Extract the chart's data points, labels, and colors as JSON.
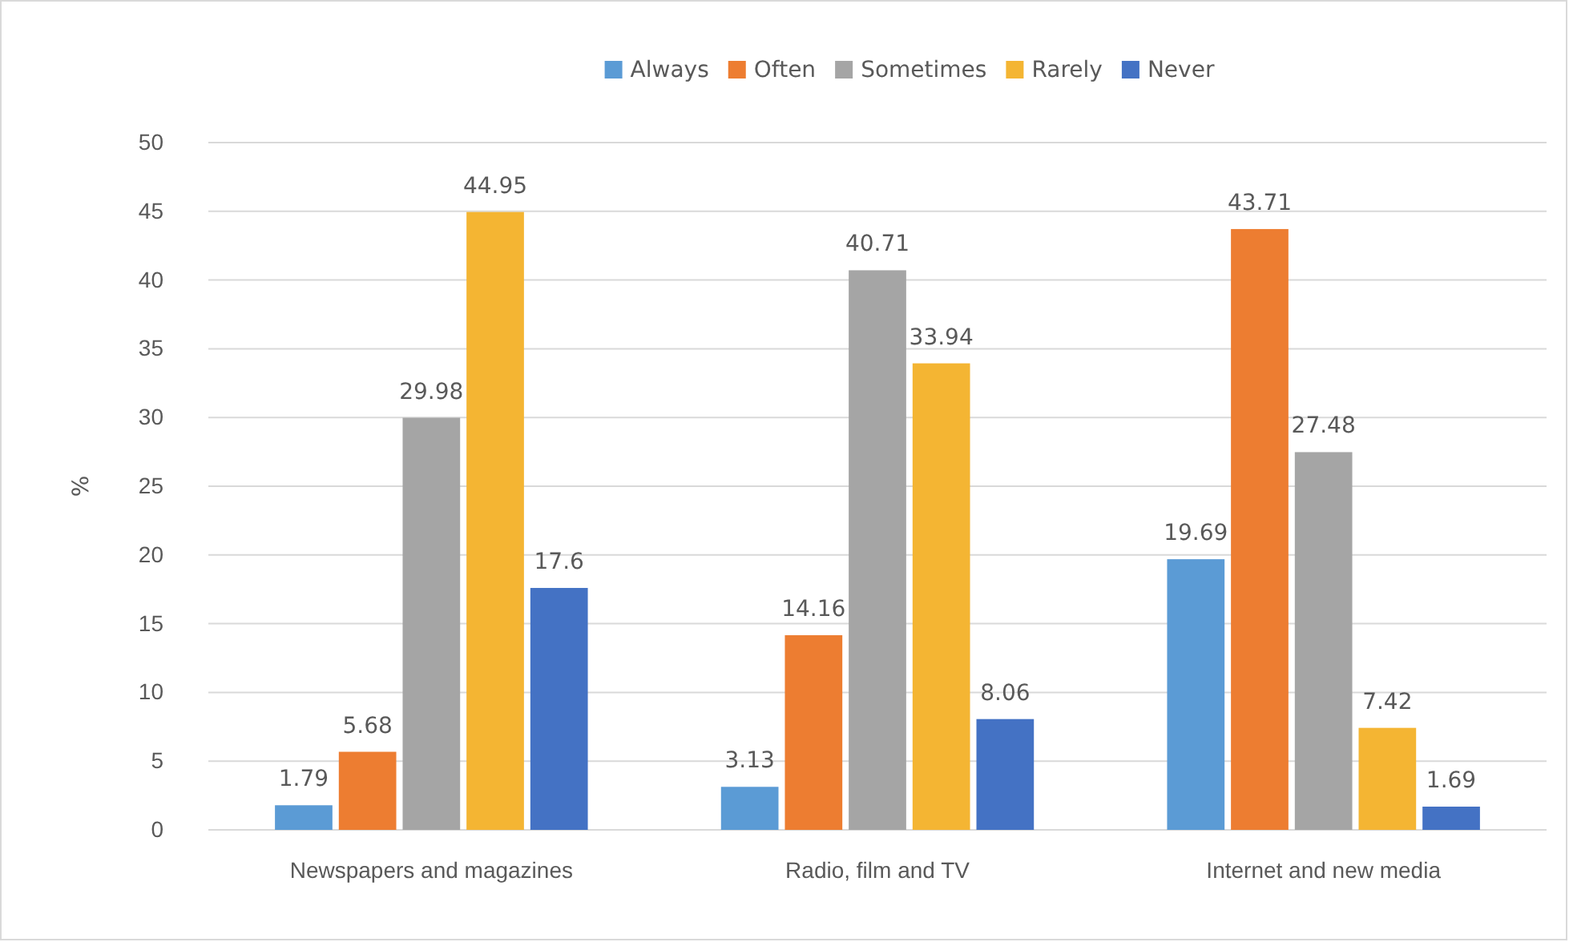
{
  "chart_data": {
    "type": "bar",
    "ylabel": "%",
    "categories": [
      "Newspapers and magazines",
      "Radio, film and TV",
      "Internet and new media"
    ],
    "series": [
      {
        "name": "Always",
        "color": "#5b9bd5",
        "values": [
          1.79,
          3.13,
          19.69
        ]
      },
      {
        "name": "Often",
        "color": "#ed7d31",
        "values": [
          5.68,
          14.16,
          43.71
        ]
      },
      {
        "name": "Sometimes",
        "color": "#a5a5a5",
        "values": [
          29.98,
          40.71,
          27.48
        ]
      },
      {
        "name": "Rarely",
        "color": "#f4b533",
        "values": [
          44.95,
          33.94,
          7.42
        ]
      },
      {
        "name": "Never",
        "color": "#4472c4",
        "values": [
          17.6,
          8.06,
          1.69
        ]
      }
    ],
    "ylim": [
      0,
      50
    ],
    "yticks": [
      0,
      5,
      10,
      15,
      20,
      25,
      30,
      35,
      40,
      45,
      50
    ],
    "grid": "y",
    "legend": "top",
    "data_labels": true
  }
}
